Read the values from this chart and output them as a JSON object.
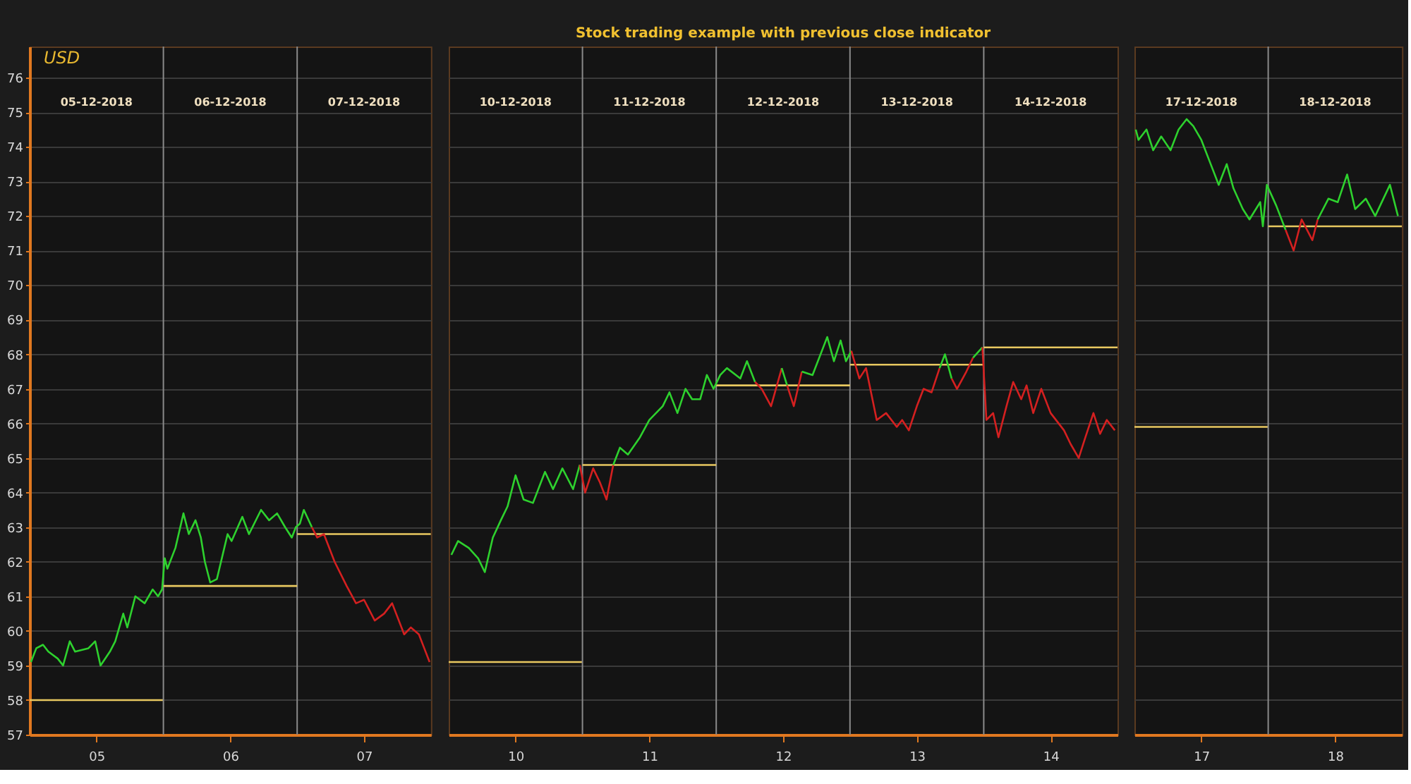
{
  "chart_data": [
    {
      "type": "line",
      "annotations": [
        "USD"
      ],
      "xlim": [
        4.5,
        7.5
      ],
      "ylim": [
        57,
        76.9
      ],
      "xticks": [
        {
          "value": 5,
          "label": "05"
        },
        {
          "value": 6,
          "label": "06"
        },
        {
          "value": 7,
          "label": "07"
        }
      ],
      "x2lim": [
        "2018-12-04T12:00",
        "2018-12-07T12:00"
      ],
      "x2ticks": [
        {
          "value": "2018-12-05",
          "label": "05-12-2018"
        },
        {
          "value": "2018-12-06",
          "label": "06-12-2018"
        },
        {
          "value": "2018-12-07",
          "label": "07-12-2018"
        }
      ],
      "yticks": [
        57,
        58,
        59,
        60,
        61,
        62,
        63,
        64,
        65,
        66,
        67,
        68,
        69,
        70,
        71,
        72,
        73,
        74,
        75,
        76
      ],
      "grid": "y",
      "line_style": "solid",
      "ref_lines": [
        {
          "axis": "x",
          "value": 5.5,
          "color": "#8a8a8a"
        },
        {
          "axis": "x",
          "value": 6.5,
          "color": "#8a8a8a"
        }
      ],
      "series": [
        {
          "color": "#e8c860",
          "x": [
            4.5,
            5.5
          ],
          "values": [
            58.0,
            58.0
          ]
        },
        {
          "color": "#e8c860",
          "x": [
            5.5,
            6.5
          ],
          "values": [
            61.3,
            61.3
          ]
        },
        {
          "color": "#e8c860",
          "x": [
            6.5,
            7.5
          ],
          "values": [
            62.8,
            62.8
          ]
        },
        {
          "color": "#2ed12e",
          "x": [
            4.51,
            4.55,
            4.6,
            4.64,
            4.71,
            4.75,
            4.8,
            4.84,
            4.94,
            4.99,
            5.03,
            5.1,
            5.14,
            5.2,
            5.23,
            5.29,
            5.36,
            5.42,
            5.46,
            5.49,
            5.51,
            5.53,
            5.59,
            5.65,
            5.69,
            5.74,
            5.78,
            5.81,
            5.85,
            5.9,
            5.98,
            6.01,
            6.09,
            6.14,
            6.23,
            6.29,
            6.35,
            6.41,
            6.46,
            6.49,
            6.52,
            6.55,
            6.61
          ],
          "values": [
            59.1,
            59.5,
            59.6,
            59.4,
            59.2,
            59.0,
            59.7,
            59.4,
            59.5,
            59.7,
            59.0,
            59.4,
            59.7,
            60.5,
            60.1,
            61.0,
            60.8,
            61.2,
            61.0,
            61.2,
            62.1,
            61.8,
            62.4,
            63.4,
            62.8,
            63.2,
            62.7,
            62.0,
            61.4,
            61.5,
            62.8,
            62.6,
            63.3,
            62.8,
            63.5,
            63.2,
            63.4,
            63.0,
            62.7,
            63.0,
            63.1,
            63.5,
            63.0
          ]
        },
        {
          "color": "#d42020",
          "x": [
            6.61,
            6.65,
            6.7,
            6.78,
            6.87,
            6.94,
            7.0,
            7.08,
            7.15,
            7.21,
            7.3,
            7.35,
            7.41,
            7.45,
            7.49
          ],
          "values": [
            63.0,
            62.7,
            62.8,
            62.0,
            61.3,
            60.8,
            60.9,
            60.3,
            60.5,
            60.8,
            59.9,
            60.1,
            59.9,
            59.5,
            59.1
          ]
        }
      ]
    },
    {
      "type": "line",
      "title": "Stock trading example with previous close indicator",
      "xlim": [
        9.5,
        14.5
      ],
      "ylim": [
        57,
        76.9
      ],
      "xticks": [
        {
          "value": 10,
          "label": "10"
        },
        {
          "value": 11,
          "label": "11"
        },
        {
          "value": 12,
          "label": "12"
        },
        {
          "value": 13,
          "label": "13"
        },
        {
          "value": 14,
          "label": "14"
        }
      ],
      "x2lim": [
        "2018-12-09T12:00",
        "2018-12-14T12:00"
      ],
      "x2ticks": [
        {
          "value": "2018-12-10",
          "label": "10-12-2018"
        },
        {
          "value": "2018-12-11",
          "label": "11-12-2018"
        },
        {
          "value": "2018-12-12",
          "label": "12-12-2018"
        },
        {
          "value": "2018-12-13",
          "label": "13-12-2018"
        },
        {
          "value": "2018-12-14",
          "label": "14-12-2018"
        }
      ],
      "yticks": [
        57,
        58,
        59,
        60,
        61,
        62,
        63,
        64,
        65,
        66,
        67,
        68,
        69,
        70,
        71,
        72,
        73,
        74,
        75,
        76
      ],
      "tick_labels": "x",
      "grid": "y",
      "line_style": "solid",
      "ref_lines": [
        {
          "axis": "x",
          "value": 10.5,
          "color": "#8a8a8a"
        },
        {
          "axis": "x",
          "value": 11.5,
          "color": "#8a8a8a"
        },
        {
          "axis": "x",
          "value": 12.5,
          "color": "#8a8a8a"
        },
        {
          "axis": "x",
          "value": 13.5,
          "color": "#8a8a8a"
        }
      ],
      "series": [
        {
          "color": "#e8c860",
          "x": [
            9.5,
            10.5
          ],
          "values": [
            59.1,
            59.1
          ]
        },
        {
          "color": "#e8c860",
          "x": [
            10.5,
            11.5
          ],
          "values": [
            64.8,
            64.8
          ]
        },
        {
          "color": "#e8c860",
          "x": [
            11.5,
            12.5
          ],
          "values": [
            67.1,
            67.1
          ]
        },
        {
          "color": "#e8c860",
          "x": [
            12.5,
            13.5
          ],
          "values": [
            67.7,
            67.7
          ]
        },
        {
          "color": "#e8c860",
          "x": [
            13.5,
            14.5
          ],
          "values": [
            68.2,
            68.2
          ]
        },
        {
          "color": "#2ed12e",
          "x": [
            9.52,
            9.57,
            9.65,
            9.72,
            9.77,
            9.83,
            9.89,
            9.94,
            10.0,
            10.06,
            10.13,
            10.22,
            10.28,
            10.35,
            10.43,
            10.48
          ],
          "values": [
            62.2,
            62.6,
            62.4,
            62.1,
            61.7,
            62.7,
            63.2,
            63.6,
            64.5,
            63.8,
            63.7,
            64.6,
            64.1,
            64.7,
            64.1,
            64.8
          ]
        },
        {
          "color": "#d42020",
          "x": [
            10.48,
            10.52,
            10.58,
            10.63,
            10.68,
            10.73
          ],
          "values": [
            64.8,
            64.0,
            64.7,
            64.3,
            63.8,
            64.8
          ]
        },
        {
          "color": "#2ed12e",
          "x": [
            10.73,
            10.78,
            10.84,
            10.93,
            11.0,
            11.1,
            11.15,
            11.21,
            11.27,
            11.32,
            11.38,
            11.43,
            11.48,
            11.53,
            11.58,
            11.68,
            11.73,
            11.79
          ],
          "values": [
            64.8,
            65.3,
            65.1,
            65.6,
            66.1,
            66.5,
            66.9,
            66.3,
            67.0,
            66.7,
            66.7,
            67.4,
            67.0,
            67.4,
            67.6,
            67.3,
            67.8,
            67.2
          ]
        },
        {
          "color": "#d42020",
          "x": [
            11.79,
            11.84,
            11.91,
            11.99
          ],
          "values": [
            67.2,
            67.0,
            66.5,
            67.6
          ]
        },
        {
          "color": "#2ed12e",
          "x": [
            11.99,
            12.03
          ],
          "values": [
            67.6,
            67.1
          ]
        },
        {
          "color": "#d42020",
          "x": [
            12.03,
            12.08,
            12.14
          ],
          "values": [
            67.1,
            66.5,
            67.5
          ]
        },
        {
          "color": "#2ed12e",
          "x": [
            12.14,
            12.22,
            12.29,
            12.33,
            12.38,
            12.43,
            12.47,
            12.51
          ],
          "values": [
            67.5,
            67.4,
            68.1,
            68.5,
            67.8,
            68.4,
            67.8,
            68.1
          ]
        },
        {
          "color": "#d42020",
          "x": [
            12.51,
            12.57,
            12.62,
            12.7,
            12.77,
            12.85,
            12.89,
            12.94,
            13.0,
            13.05,
            13.11,
            13.17
          ],
          "values": [
            68.1,
            67.3,
            67.6,
            66.1,
            66.3,
            65.9,
            66.1,
            65.8,
            66.5,
            67.0,
            66.9,
            67.6
          ]
        },
        {
          "color": "#2ed12e",
          "x": [
            13.17,
            13.21,
            13.26
          ],
          "values": [
            67.6,
            68.0,
            67.3
          ]
        },
        {
          "color": "#d42020",
          "x": [
            13.26,
            13.3,
            13.37,
            13.42
          ],
          "values": [
            67.3,
            67.0,
            67.5,
            67.9
          ]
        },
        {
          "color": "#2ed12e",
          "x": [
            13.42,
            13.49
          ],
          "values": [
            67.9,
            68.2
          ]
        },
        {
          "color": "#d42020",
          "x": [
            13.49,
            13.52,
            13.57,
            13.61,
            13.67,
            13.72,
            13.78,
            13.82,
            13.87,
            13.93,
            14.0,
            14.1,
            14.15,
            14.21,
            14.26,
            14.32,
            14.37,
            14.42,
            14.48
          ],
          "values": [
            68.2,
            66.1,
            66.3,
            65.6,
            66.5,
            67.2,
            66.7,
            67.1,
            66.3,
            67.0,
            66.3,
            65.8,
            65.4,
            65.0,
            65.6,
            66.3,
            65.7,
            66.1,
            65.8
          ]
        }
      ]
    },
    {
      "type": "line",
      "xlim": [
        16.5,
        18.5
      ],
      "ylim": [
        57,
        76.9
      ],
      "xticks": [
        {
          "value": 17,
          "label": "17"
        },
        {
          "value": 18,
          "label": "18"
        }
      ],
      "x2lim": [
        "2018-12-16T12:00",
        "2018-12-18T12:00"
      ],
      "x2ticks": [
        {
          "value": "2018-12-17",
          "label": "17-12-2018"
        },
        {
          "value": "2018-12-18",
          "label": "18-12-2018"
        }
      ],
      "yticks": [
        57,
        58,
        59,
        60,
        61,
        62,
        63,
        64,
        65,
        66,
        67,
        68,
        69,
        70,
        71,
        72,
        73,
        74,
        75,
        76
      ],
      "tick_labels": "x",
      "grid": "y",
      "line_style": "solid",
      "ref_lines": [
        {
          "axis": "x",
          "value": 17.5,
          "color": "#8a8a8a"
        }
      ],
      "series": [
        {
          "color": "#e8c860",
          "x": [
            16.5,
            17.5
          ],
          "values": [
            65.9,
            65.9
          ]
        },
        {
          "color": "#e8c860",
          "x": [
            17.5,
            18.5
          ],
          "values": [
            71.7,
            71.7
          ]
        },
        {
          "color": "#2ed12e",
          "x": [
            16.51,
            16.53,
            16.59,
            16.64,
            16.7,
            16.77,
            16.83,
            16.89,
            16.94,
            17.0,
            17.06,
            17.13,
            17.19,
            17.24,
            17.31,
            17.36,
            17.44,
            17.46,
            17.49,
            17.56,
            17.63
          ],
          "values": [
            74.5,
            74.2,
            74.5,
            73.9,
            74.3,
            73.9,
            74.5,
            74.8,
            74.6,
            74.2,
            73.6,
            72.9,
            73.5,
            72.8,
            72.2,
            71.9,
            72.4,
            71.7,
            72.9,
            72.3,
            71.6
          ]
        },
        {
          "color": "#d42020",
          "x": [
            17.63,
            17.69,
            17.75,
            17.83,
            17.87
          ],
          "values": [
            71.6,
            71.0,
            71.9,
            71.3,
            71.9
          ]
        },
        {
          "color": "#2ed12e",
          "x": [
            17.87,
            17.95,
            18.02,
            18.09,
            18.15,
            18.23,
            18.3,
            18.41,
            18.47
          ],
          "values": [
            71.9,
            72.5,
            72.4,
            73.2,
            72.2,
            72.5,
            72.0,
            72.9,
            72.0
          ]
        }
      ]
    }
  ]
}
